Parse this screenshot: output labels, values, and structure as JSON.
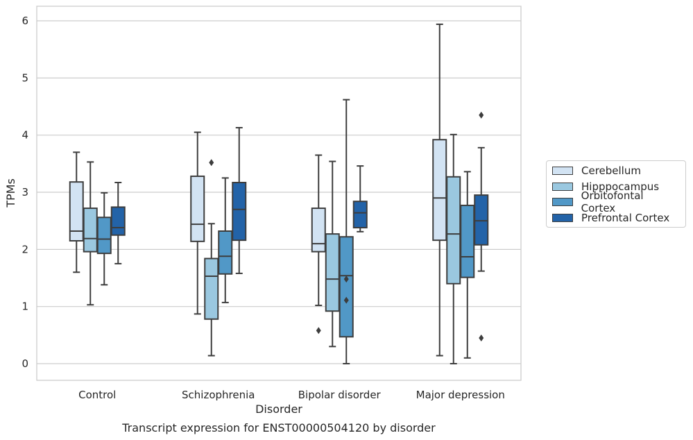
{
  "chart_data": {
    "type": "box",
    "caption": "Transcript expression for ENST00000504120 by disorder",
    "xlabel": "Disorder",
    "ylabel": "TPMs",
    "ylim": [
      -0.28,
      6.24
    ],
    "yticks": [
      "0",
      "1",
      "2",
      "3",
      "4",
      "5",
      "6"
    ],
    "categories": [
      "Control",
      "Schizophrenia",
      "Bipolar disorder",
      "Major depression"
    ],
    "grid": true,
    "legend_position": "right",
    "series": [
      {
        "name": "Cerebellum",
        "color": "#d2e3f3",
        "boxes": [
          {
            "whislo": 1.6,
            "q1": 2.15,
            "med": 2.32,
            "q3": 3.18,
            "whishi": 3.7,
            "fliers": []
          },
          {
            "whislo": 0.87,
            "q1": 2.14,
            "med": 2.44,
            "q3": 3.28,
            "whishi": 4.05,
            "fliers": []
          },
          {
            "whislo": 1.02,
            "q1": 1.96,
            "med": 2.1,
            "q3": 2.72,
            "whishi": 3.65,
            "fliers": [
              0.58
            ]
          },
          {
            "whislo": 0.14,
            "q1": 2.16,
            "med": 2.9,
            "q3": 3.92,
            "whishi": 5.94,
            "fliers": []
          }
        ]
      },
      {
        "name": "Hipppocampus",
        "color": "#9ac8e0",
        "boxes": [
          {
            "whislo": 1.03,
            "q1": 1.96,
            "med": 2.19,
            "q3": 2.72,
            "whishi": 3.53,
            "fliers": []
          },
          {
            "whislo": 0.14,
            "q1": 0.78,
            "med": 1.53,
            "q3": 1.84,
            "whishi": 2.45,
            "fliers": [
              3.52
            ]
          },
          {
            "whislo": 0.3,
            "q1": 0.92,
            "med": 1.48,
            "q3": 2.27,
            "whishi": 3.54,
            "fliers": []
          },
          {
            "whislo": 0.0,
            "q1": 1.4,
            "med": 2.27,
            "q3": 3.27,
            "whishi": 4.01,
            "fliers": []
          }
        ]
      },
      {
        "name": "Orbitofontal Cortex",
        "color": "#5198c7",
        "boxes": [
          {
            "whislo": 1.38,
            "q1": 1.93,
            "med": 2.18,
            "q3": 2.56,
            "whishi": 2.99,
            "fliers": []
          },
          {
            "whislo": 1.07,
            "q1": 1.57,
            "med": 1.88,
            "q3": 2.32,
            "whishi": 3.25,
            "fliers": []
          },
          {
            "whislo": 0.0,
            "q1": 0.47,
            "med": 1.54,
            "q3": 2.22,
            "whishi": 4.62,
            "fliers": [
              1.48,
              1.11
            ]
          },
          {
            "whislo": 0.1,
            "q1": 1.51,
            "med": 1.87,
            "q3": 2.77,
            "whishi": 3.36,
            "fliers": []
          }
        ]
      },
      {
        "name": "Prefrontal Cortex",
        "color": "#2363a8",
        "boxes": [
          {
            "whislo": 1.75,
            "q1": 2.25,
            "med": 2.38,
            "q3": 2.74,
            "whishi": 3.17,
            "fliers": []
          },
          {
            "whislo": 1.58,
            "q1": 2.16,
            "med": 2.7,
            "q3": 3.17,
            "whishi": 4.13,
            "fliers": []
          },
          {
            "whislo": 2.31,
            "q1": 2.38,
            "med": 2.64,
            "q3": 2.84,
            "whishi": 3.46,
            "fliers": []
          },
          {
            "whislo": 1.62,
            "q1": 2.08,
            "med": 2.5,
            "q3": 2.95,
            "whishi": 3.78,
            "fliers": [
              4.35,
              0.45
            ]
          }
        ]
      }
    ]
  }
}
